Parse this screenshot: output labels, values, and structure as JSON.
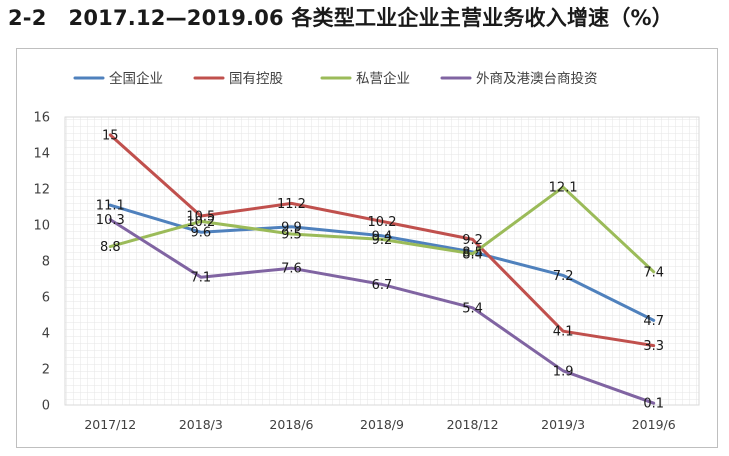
{
  "figure": {
    "number": "2-2",
    "title": "2017.12—2019.06 各类型工业企业主营业务收入增速（%）"
  },
  "chart_data": {
    "type": "line",
    "title": "2017.12—2019.06 各类型工业企业主营业务收入增速（%）",
    "categories": [
      "2017/12",
      "2018/3",
      "2018/6",
      "2018/9",
      "2018/12",
      "2019/3",
      "2019/6"
    ],
    "ylim": [
      0,
      16
    ],
    "yticks": [
      0,
      2,
      4,
      6,
      8,
      10,
      12,
      14,
      16
    ],
    "xlabel": "",
    "ylabel": "",
    "grid": "none",
    "legend": "top",
    "series": [
      {
        "name": "全国企业",
        "color": "#4f81bd",
        "values": [
          11.1,
          9.6,
          9.9,
          9.4,
          8.5,
          7.2,
          4.7
        ]
      },
      {
        "name": "国有控股",
        "color": "#c0504d",
        "values": [
          15,
          10.5,
          11.2,
          10.2,
          9.2,
          4.1,
          3.3
        ]
      },
      {
        "name": "私营企业",
        "color": "#9bbb59",
        "values": [
          8.8,
          10.2,
          9.5,
          9.2,
          8.4,
          12.1,
          7.4
        ]
      },
      {
        "name": "外商及港澳台商投资",
        "color": "#8064a2",
        "values": [
          10.3,
          7.1,
          7.6,
          6.7,
          5.4,
          1.9,
          0.1
        ]
      }
    ]
  }
}
